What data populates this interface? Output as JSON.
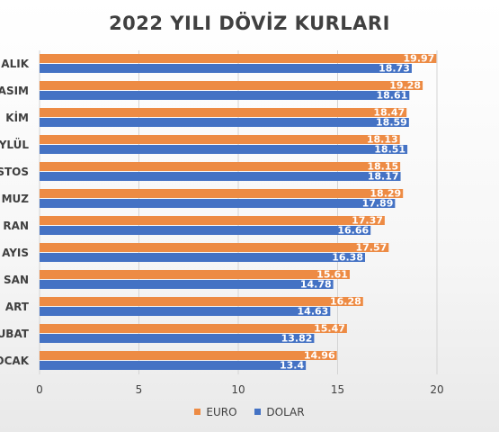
{
  "chart_data": {
    "type": "bar",
    "orientation": "horizontal",
    "title": "2022 YILI DÖVİZ KURLARI",
    "categories": [
      "ARALIK",
      "KASIM",
      "EKİM",
      "EYLÜL",
      "AĞUSTOS",
      "TEMMUZ",
      "HAZİRAN",
      "MAYIS",
      "NİSAN",
      "MART",
      "ŞUBAT",
      "OCAK"
    ],
    "category_labels_visible": [
      "ALIK",
      "ASIM",
      "KİM",
      "YLÜL",
      "STOS",
      "MUZ",
      "RAN",
      "AYIS",
      "SAN",
      "ART",
      "UBAT",
      "OCAK"
    ],
    "series": [
      {
        "name": "EURO",
        "color": "#ED8B44",
        "values": [
          19.97,
          19.28,
          18.47,
          18.13,
          18.15,
          18.29,
          17.37,
          17.57,
          15.61,
          16.28,
          15.47,
          14.96
        ]
      },
      {
        "name": "DOLAR",
        "color": "#4472C4",
        "values": [
          18.73,
          18.61,
          18.59,
          18.51,
          18.17,
          17.89,
          16.66,
          16.38,
          14.78,
          14.63,
          13.82,
          13.4
        ]
      }
    ],
    "xlim": [
      0,
      20
    ],
    "xticks": [
      "0",
      "5",
      "10",
      "15",
      "20"
    ],
    "grid": true,
    "legend": "bottom"
  }
}
